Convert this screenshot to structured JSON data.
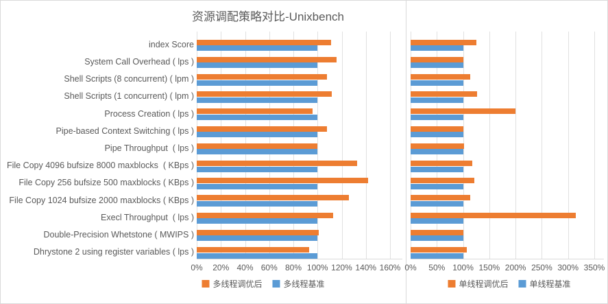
{
  "title": "资源调配策略对比-Unixbench",
  "colors": {
    "tuned": "#ED7D31",
    "baseline": "#5B9BD5"
  },
  "chart_data": [
    {
      "type": "bar",
      "orientation": "horizontal",
      "panel": "left",
      "title": "",
      "categories": [
        "index Score",
        "System Call Overhead ( lps )",
        "Shell Scripts (8 concurrent) ( lpm )",
        "Shell Scripts (1 concurrent) ( lpm )",
        "Process Creation ( lps )",
        "Pipe-based Context Switching ( lps )",
        "Pipe Throughput  ( lps )",
        "File Copy 4096 bufsize 8000 maxblocks  ( KBps )",
        "File Copy 256 bufsize 500 maxblocks ( KBps )",
        "File Copy 1024 bufsize 2000 maxblocks ( KBps )",
        "Execl Throughput  ( lps )",
        "Double-Precision Whetstone ( MWIPS )",
        "Dhrystone 2 using register variables ( lps )"
      ],
      "series": [
        {
          "name": "多线程调优后",
          "color": "#ED7D31",
          "values": [
            111,
            116,
            108,
            112,
            96,
            108,
            100,
            133,
            142,
            126,
            113,
            101,
            93
          ]
        },
        {
          "name": "多线程基准",
          "color": "#5B9BD5",
          "values": [
            100,
            100,
            100,
            100,
            100,
            100,
            100,
            100,
            100,
            100,
            100,
            100,
            100
          ]
        }
      ],
      "x_ticks": [
        "0%",
        "20%",
        "40%",
        "60%",
        "80%",
        "100%",
        "120%",
        "140%",
        "160%"
      ],
      "xlim": [
        0,
        160
      ],
      "xlabel": "",
      "ylabel": "",
      "grid": true,
      "legend_position": "bottom"
    },
    {
      "type": "bar",
      "orientation": "horizontal",
      "panel": "right",
      "title": "",
      "categories": [
        "index Score",
        "System Call Overhead ( lps )",
        "Shell Scripts (8 concurrent) ( lpm )",
        "Shell Scripts (1 concurrent) ( lpm )",
        "Process Creation ( lps )",
        "Pipe-based Context Switching ( lps )",
        "Pipe Throughput  ( lps )",
        "File Copy 4096 bufsize 8000 maxblocks  ( KBps )",
        "File Copy 256 bufsize 500 maxblocks ( KBps )",
        "File Copy 1024 bufsize 2000 maxblocks ( KBps )",
        "Execl Throughput  ( lps )",
        "Double-Precision Whetstone ( MWIPS )",
        "Dhrystone 2 using register variables ( lps )"
      ],
      "series": [
        {
          "name": "单线程调优后",
          "color": "#ED7D31",
          "values": [
            126,
            101,
            113,
            127,
            200,
            100,
            102,
            118,
            122,
            113,
            315,
            100,
            107
          ]
        },
        {
          "name": "单线程基准",
          "color": "#5B9BD5",
          "values": [
            100,
            100,
            100,
            100,
            100,
            100,
            100,
            100,
            100,
            100,
            100,
            100,
            100
          ]
        }
      ],
      "x_ticks": [
        "0%",
        "50%",
        "100%",
        "150%",
        "200%",
        "250%",
        "300%",
        "350%"
      ],
      "xlim": [
        0,
        350
      ],
      "xlabel": "",
      "ylabel": "",
      "grid": true,
      "legend_position": "bottom"
    }
  ]
}
